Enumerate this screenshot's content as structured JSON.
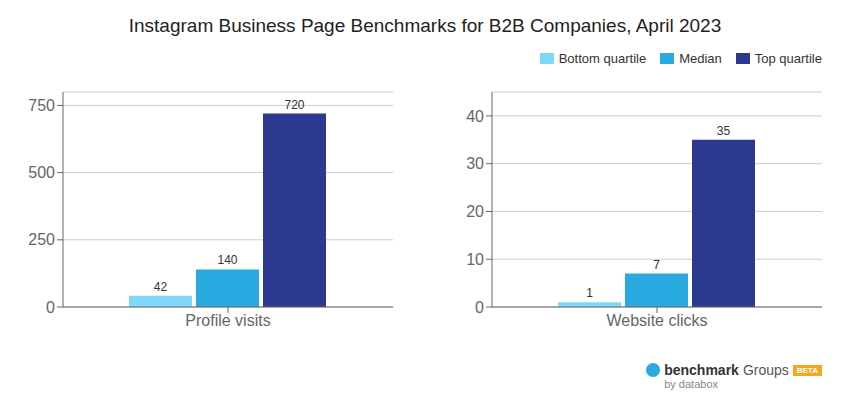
{
  "chart_data": [
    {
      "type": "bar",
      "title": "Instagram Business Page Benchmarks for B2B Companies, April 2023",
      "categories": [
        "Profile visits"
      ],
      "series": [
        {
          "name": "Bottom quartile",
          "color": "#7FD8F7",
          "values": [
            42
          ]
        },
        {
          "name": "Median",
          "color": "#29ABE2",
          "values": [
            140
          ]
        },
        {
          "name": "Top quartile",
          "color": "#2B3990",
          "values": [
            720
          ]
        }
      ],
      "ylim": [
        0,
        800
      ],
      "yticks": [
        0,
        250,
        500,
        750
      ],
      "grid": true,
      "data_labels": true
    },
    {
      "type": "bar",
      "categories": [
        "Website clicks"
      ],
      "series": [
        {
          "name": "Bottom quartile",
          "color": "#7FD8F7",
          "values": [
            1
          ]
        },
        {
          "name": "Median",
          "color": "#29ABE2",
          "values": [
            7
          ]
        },
        {
          "name": "Top quartile",
          "color": "#2B3990",
          "values": [
            35
          ]
        }
      ],
      "ylim": [
        0,
        45
      ],
      "yticks": [
        0,
        10,
        20,
        30,
        40
      ],
      "grid": true,
      "data_labels": true,
      "legend": "upper right",
      "annotations": [
        "benchmark",
        "Groups",
        "by databox",
        "BETA"
      ]
    }
  ]
}
